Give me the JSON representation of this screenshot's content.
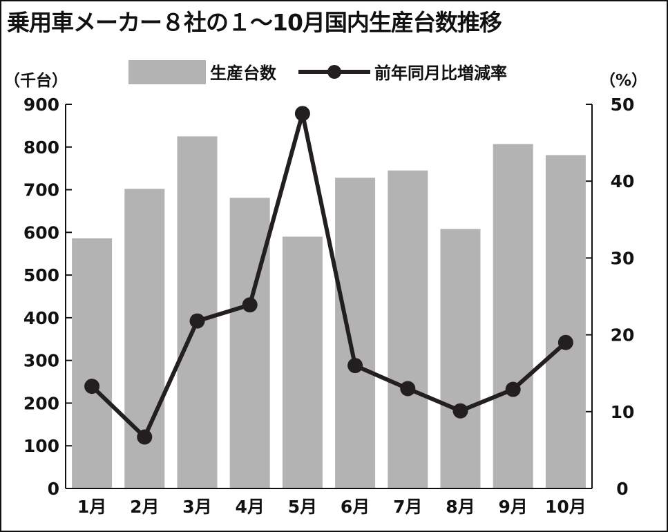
{
  "title": "乗用車メーカー８社の１～10月国内生産台数推移",
  "chart_data": {
    "type": "bar+line",
    "categories": [
      "1月",
      "2月",
      "3月",
      "4月",
      "5月",
      "6月",
      "7月",
      "8月",
      "9月",
      "10月"
    ],
    "series": [
      {
        "name": "生産台数",
        "type": "bar",
        "axis": "left",
        "color": "#b3b3b3",
        "values": [
          586,
          702,
          825,
          681,
          590,
          728,
          745,
          608,
          807,
          781
        ]
      },
      {
        "name": "前年同月比増減率",
        "type": "line",
        "axis": "right",
        "color": "#231f20",
        "values": [
          13.3,
          6.7,
          21.8,
          23.9,
          48.8,
          16.0,
          13.0,
          10.1,
          12.9,
          19.0
        ]
      }
    ],
    "left_axis": {
      "unit": "（千台）",
      "min": 0,
      "max": 900,
      "ticks": [
        "0",
        "100",
        "200",
        "300",
        "400",
        "500",
        "600",
        "700",
        "800",
        "900"
      ]
    },
    "right_axis": {
      "unit": "（%）",
      "min": 0,
      "max": 50,
      "ticks": [
        "0",
        "10",
        "20",
        "30",
        "40",
        "50"
      ]
    },
    "legend_position": "top",
    "grid": false
  }
}
